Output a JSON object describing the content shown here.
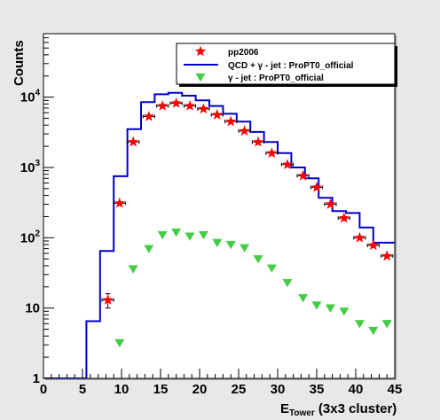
{
  "chart_data": {
    "type": "scatter",
    "log_y": true,
    "xlim": [
      0,
      45
    ],
    "ylim": [
      1,
      80000
    ],
    "xlabel_main": "E",
    "xlabel_sub": "Tower",
    "xlabel_tail": " (3x3 cluster)",
    "ylabel": "Counts",
    "x_ticks": [
      0,
      5,
      10,
      15,
      20,
      25,
      30,
      35,
      40,
      45
    ],
    "y_tick_labels": [
      {
        "value": 1,
        "base": "1",
        "exp": ""
      },
      {
        "value": 10,
        "base": "10",
        "exp": ""
      },
      {
        "value": 100,
        "base": "10",
        "exp": "2"
      },
      {
        "value": 1000,
        "base": "10",
        "exp": "3"
      },
      {
        "value": 10000,
        "base": "10",
        "exp": "4"
      }
    ],
    "legend": {
      "placement": "top-right",
      "entries": [
        {
          "label": "pp2006",
          "marker": "star",
          "color": "#ff0000"
        },
        {
          "label": "QCD + γ - jet : ProPT0_official",
          "marker": "line",
          "color": "#0000cc"
        },
        {
          "label": "γ - jet : ProPT0_official",
          "marker": "triangle-down",
          "color": "#44cc44"
        }
      ]
    },
    "series": [
      {
        "name": "pp2006",
        "style": "star",
        "color": "#ff0000",
        "x_err": 0.75,
        "points": [
          {
            "x": 8.25,
            "y": 13,
            "yerr_lo": 3,
            "yerr_hi": 3
          },
          {
            "x": 9.75,
            "y": 310
          },
          {
            "x": 11.5,
            "y": 2300
          },
          {
            "x": 13.5,
            "y": 5300
          },
          {
            "x": 15.25,
            "y": 7500
          },
          {
            "x": 17.0,
            "y": 8200
          },
          {
            "x": 18.75,
            "y": 7500
          },
          {
            "x": 20.5,
            "y": 6800
          },
          {
            "x": 22.25,
            "y": 5600
          },
          {
            "x": 24.0,
            "y": 4500
          },
          {
            "x": 25.75,
            "y": 3300
          },
          {
            "x": 27.5,
            "y": 2300
          },
          {
            "x": 29.25,
            "y": 1600
          },
          {
            "x": 31.25,
            "y": 1100
          },
          {
            "x": 33.25,
            "y": 760
          },
          {
            "x": 35.0,
            "y": 520
          },
          {
            "x": 36.75,
            "y": 300
          },
          {
            "x": 38.5,
            "y": 190
          },
          {
            "x": 40.5,
            "y": 100
          },
          {
            "x": 42.25,
            "y": 78
          },
          {
            "x": 44.0,
            "y": 55
          }
        ]
      },
      {
        "name": "QCD + γ - jet : ProPT0_official",
        "style": "step",
        "color": "#0000cc",
        "bins": [
          {
            "x0": 0,
            "x1": 5.5,
            "y": 1
          },
          {
            "x0": 5.5,
            "x1": 7.25,
            "y": 6.5
          },
          {
            "x0": 7.25,
            "x1": 9.0,
            "y": 65
          },
          {
            "x0": 9.0,
            "x1": 10.75,
            "y": 750
          },
          {
            "x0": 10.75,
            "x1": 12.5,
            "y": 3500
          },
          {
            "x0": 12.5,
            "x1": 14.25,
            "y": 8500
          },
          {
            "x0": 14.25,
            "x1": 16.0,
            "y": 11000
          },
          {
            "x0": 16.0,
            "x1": 17.75,
            "y": 11500
          },
          {
            "x0": 17.75,
            "x1": 19.5,
            "y": 10500
          },
          {
            "x0": 19.5,
            "x1": 21.25,
            "y": 9000
          },
          {
            "x0": 21.25,
            "x1": 23.0,
            "y": 7500
          },
          {
            "x0": 23.0,
            "x1": 24.75,
            "y": 5800
          },
          {
            "x0": 24.75,
            "x1": 26.5,
            "y": 4500
          },
          {
            "x0": 26.5,
            "x1": 28.25,
            "y": 3200
          },
          {
            "x0": 28.25,
            "x1": 30.0,
            "y": 2300
          },
          {
            "x0": 30.0,
            "x1": 31.75,
            "y": 1600
          },
          {
            "x0": 31.75,
            "x1": 33.5,
            "y": 1000
          },
          {
            "x0": 33.5,
            "x1": 35.25,
            "y": 700
          },
          {
            "x0": 35.25,
            "x1": 37.0,
            "y": 370
          },
          {
            "x0": 37.0,
            "x1": 38.75,
            "y": 240
          },
          {
            "x0": 38.75,
            "x1": 40.5,
            "y": 225
          },
          {
            "x0": 40.5,
            "x1": 42.25,
            "y": 140
          },
          {
            "x0": 42.25,
            "x1": 43.5,
            "y": 85
          },
          {
            "x0": 43.5,
            "x1": 45.0,
            "y": 85
          }
        ]
      },
      {
        "name": "γ - jet : ProPT0_official",
        "style": "triangle-down",
        "color": "#44cc44",
        "points": [
          {
            "x": 9.75,
            "y": 3.2
          },
          {
            "x": 11.5,
            "y": 36
          },
          {
            "x": 13.5,
            "y": 70
          },
          {
            "x": 15.25,
            "y": 110
          },
          {
            "x": 17.0,
            "y": 120
          },
          {
            "x": 18.75,
            "y": 105
          },
          {
            "x": 20.5,
            "y": 110
          },
          {
            "x": 22.25,
            "y": 85
          },
          {
            "x": 24.0,
            "y": 80
          },
          {
            "x": 25.75,
            "y": 72
          },
          {
            "x": 27.5,
            "y": 50
          },
          {
            "x": 29.25,
            "y": 37
          },
          {
            "x": 31.25,
            "y": 23
          },
          {
            "x": 33.25,
            "y": 14
          },
          {
            "x": 35.0,
            "y": 11
          },
          {
            "x": 36.75,
            "y": 10
          },
          {
            "x": 38.5,
            "y": 9
          },
          {
            "x": 40.5,
            "y": 6
          },
          {
            "x": 42.25,
            "y": 4.8
          },
          {
            "x": 44.0,
            "y": 6
          }
        ]
      }
    ]
  }
}
